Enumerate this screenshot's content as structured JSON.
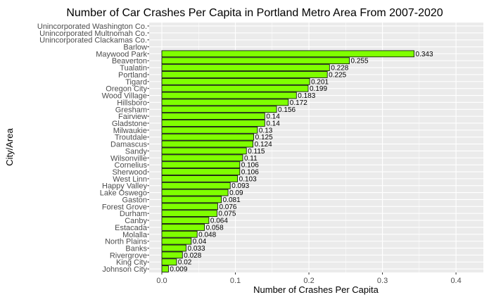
{
  "chart_data": {
    "type": "bar",
    "orientation": "horizontal",
    "title": "Number of Car Crashes Per Capita in Portland Metro Area From 2007-2020",
    "xlabel": "Number of Crashes Per Capita",
    "ylabel": "City/Area",
    "xlim": [
      0,
      0.42
    ],
    "xticks": [
      "0.0",
      "0.1",
      "0.2",
      "0.3",
      "0.4"
    ],
    "grid": true,
    "colors": {
      "bar_fill": "#7fff00",
      "bar_stroke": "#000000",
      "panel_bg": "#ebebeb",
      "grid": "#ffffff"
    },
    "categories": [
      "Unincorporated Washington Co.",
      "Unincorporated Multnomah Co.",
      "Unincorporated Clackamas Co.",
      "Barlow",
      "Maywood Park",
      "Beaverton",
      "Tualatin",
      "Portland",
      "Tigard",
      "Oregon City",
      "Wood Village",
      "Hillsboro",
      "Gresham",
      "Fairview",
      "Gladstone",
      "Milwaukie",
      "Troutdale",
      "Damascus",
      "Sandy",
      "Wilsonville",
      "Cornelius",
      "Sherwood",
      "West Linn",
      "Happy Valley",
      "Lake Oswego",
      "Gaston",
      "Forest Grove",
      "Durham",
      "Canby",
      "Estacada",
      "Molalla",
      "North Plains",
      "Banks",
      "Rivergrove",
      "King City",
      "Johnson City"
    ],
    "values": [
      0,
      0,
      0,
      0,
      0.343,
      0.255,
      0.228,
      0.225,
      0.201,
      0.199,
      0.183,
      0.172,
      0.156,
      0.14,
      0.14,
      0.13,
      0.125,
      0.124,
      0.115,
      0.11,
      0.106,
      0.106,
      0.103,
      0.093,
      0.09,
      0.081,
      0.076,
      0.075,
      0.064,
      0.058,
      0.048,
      0.04,
      0.033,
      0.028,
      0.02,
      0.009
    ],
    "value_labels": [
      "",
      "",
      "",
      "",
      "0.343",
      "0.255",
      "0.228",
      "0.225",
      "0.201",
      "0.199",
      "0.183",
      "0.172",
      "0.156",
      "0.14",
      "0.14",
      "0.13",
      "0.125",
      "0.124",
      "0.115",
      "0.11",
      "0.106",
      "0.106",
      "0.103",
      "0.093",
      "0.09",
      "0.081",
      "0.076",
      "0.075",
      "0.064",
      "0.058",
      "0.048",
      "0.04",
      "0.033",
      "0.028",
      "0.02",
      "0.009"
    ]
  }
}
